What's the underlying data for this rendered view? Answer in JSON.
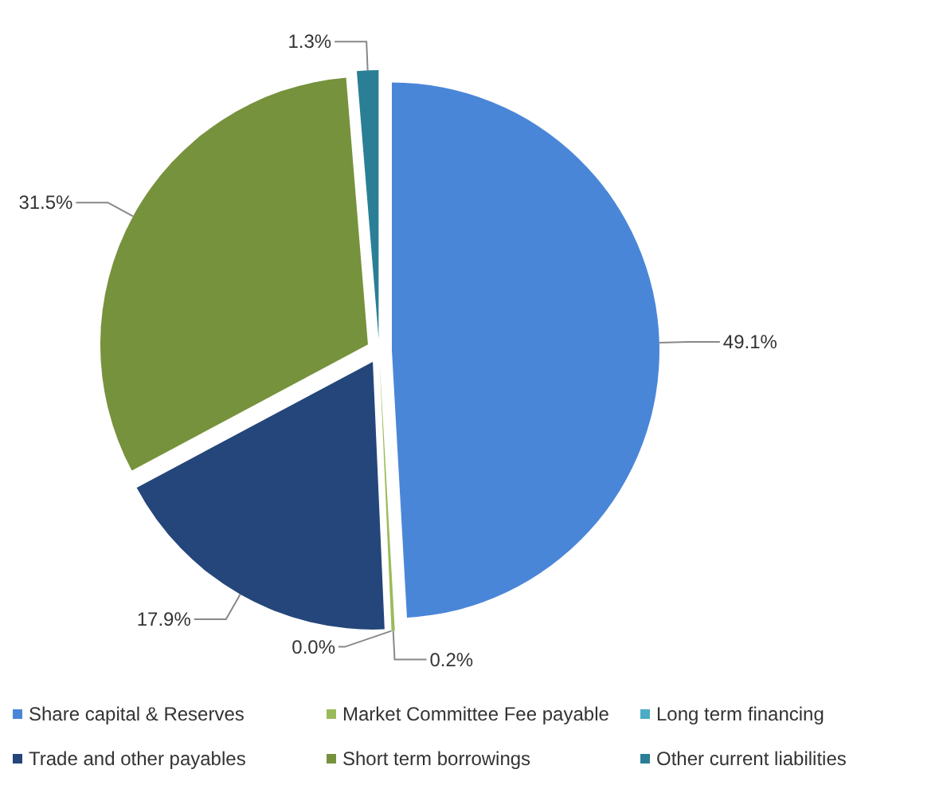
{
  "chart_data": {
    "type": "pie",
    "categories": [
      "Share capital & Reserves",
      "Market Committee Fee payable",
      "Long term financing",
      "Trade and other payables",
      "Short term borrowings",
      "Other current liabilities"
    ],
    "values": [
      49.1,
      0.2,
      0.0,
      17.9,
      31.5,
      1.3
    ],
    "colors": [
      "#4a86d8",
      "#9bbb59",
      "#4bacc6",
      "#24467a",
      "#76923c",
      "#2a7f96"
    ],
    "value_labels": [
      "49.1%",
      "0.2%",
      "0.0%",
      "17.9%",
      "31.5%",
      "1.3%"
    ],
    "legend": "bottom"
  }
}
